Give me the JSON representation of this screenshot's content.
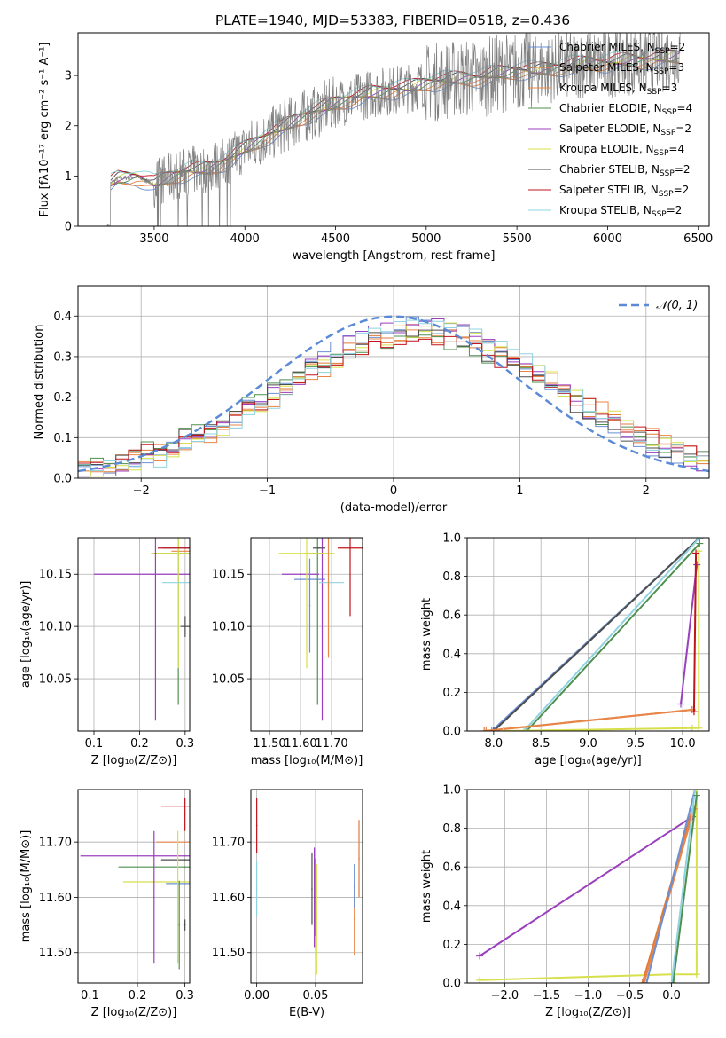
{
  "title": "PLATE=1940, MJD=53383, FIBERID=0518, z=0.436",
  "models": [
    {
      "name": "Chabrier MILES",
      "nssp": "2",
      "color": "#6b8fd4"
    },
    {
      "name": "Salpeter MILES",
      "nssp": "3",
      "color": "#e07b39"
    },
    {
      "name": "Kroupa MILES",
      "nssp": "3",
      "color": "#e8864a"
    },
    {
      "name": "Chabrier ELODIE",
      "nssp": "4",
      "color": "#4f8f4f"
    },
    {
      "name": "Salpeter ELODIE",
      "nssp": "2",
      "color": "#9b3fbf"
    },
    {
      "name": "Kroupa ELODIE",
      "nssp": "4",
      "color": "#d7e04a"
    },
    {
      "name": "Chabrier STELIB",
      "nssp": "2",
      "color": "#4d4d4d"
    },
    {
      "name": "Salpeter STELIB",
      "nssp": "2",
      "color": "#c0141c"
    },
    {
      "name": "Kroupa STELIB",
      "nssp": "2",
      "color": "#8fd3e0"
    }
  ],
  "legend_suffix": "N",
  "legend_sub": "SSP",
  "chart_data": [
    {
      "id": "spectrum",
      "type": "line",
      "xlabel": "wavelength [Angstrom, rest frame]",
      "ylabel": "Flux [fλ10⁻¹⁷ erg cm⁻² s⁻¹ A⁻¹]",
      "xlim": [
        3080,
        6560
      ],
      "ylim": [
        0,
        3.85
      ],
      "xticks": [
        3500,
        4000,
        4500,
        5000,
        5500,
        6000,
        6500
      ],
      "yticks": [
        0,
        1,
        2,
        3
      ],
      "data_color": "#808080",
      "continuum": {
        "x": [
          3260,
          3300,
          3400,
          3500,
          3600,
          3700,
          3800,
          3900,
          4000,
          4100,
          4200,
          4300,
          4400,
          4500,
          4600,
          4700,
          4800,
          4900,
          5000,
          5100,
          5200,
          5300,
          5400,
          5500,
          5600,
          5700,
          5800,
          5900,
          6000,
          6100,
          6200,
          6300,
          6400
        ],
        "y": [
          0.85,
          0.95,
          0.98,
          0.85,
          1.0,
          1.1,
          1.15,
          1.3,
          1.55,
          1.75,
          1.95,
          2.15,
          2.3,
          2.45,
          2.55,
          2.65,
          2.7,
          2.75,
          2.85,
          2.9,
          2.95,
          2.95,
          3.05,
          3.1,
          3.1,
          3.15,
          3.2,
          3.25,
          3.25,
          3.3,
          3.3,
          3.35,
          3.4
        ]
      }
    },
    {
      "id": "residuals",
      "type": "line",
      "xlabel": "(data-model)/error",
      "ylabel": "Normed distribution",
      "xlim": [
        -2.5,
        2.5
      ],
      "ylim": [
        0,
        0.475
      ],
      "xticks": [
        -2,
        -1,
        0,
        1,
        2
      ],
      "yticks": [
        0.0,
        0.1,
        0.2,
        0.3,
        0.4
      ],
      "gaussian_label": "𝒩(0, 1)",
      "gaussian_color": "#5b8bd6"
    },
    {
      "id": "age_vs_Z",
      "type": "scatter",
      "xlabel": "Z [log₁₀(Z/Z⊙)]",
      "ylabel": "age  [log₁₀(age/yr)]",
      "xlim": [
        0.065,
        0.31
      ],
      "ylim": [
        10.0,
        10.185
      ],
      "xticks": [
        0.1,
        0.2,
        0.3
      ],
      "yticks": [
        10.05,
        10.1,
        10.15
      ],
      "points": [
        {
          "m": 0,
          "x": 0.3,
          "y": 10.175,
          "xerr": 0.05,
          "yerr": 0.0
        },
        {
          "m": 1,
          "x": 0.3,
          "y": 10.17,
          "xerr": 0.03,
          "yerr": 0.0
        },
        {
          "m": 2,
          "x": 0.3,
          "y": 10.172,
          "xerr": 0.03,
          "yerr": 0.0
        },
        {
          "m": 3,
          "x": 0.285,
          "y": 10.17,
          "xerr": 0.055,
          "yerr": 0.145
        },
        {
          "m": 4,
          "x": 0.3,
          "y": 10.15,
          "xerr": 0.2,
          "yerr": 0.0
        },
        {
          "m": 5,
          "x": 0.285,
          "y": 10.17,
          "xerr": 0.06,
          "yerr": 0.11
        },
        {
          "m": 6,
          "x": 0.3,
          "y": 10.1,
          "xerr": 0.01,
          "yerr": 0.01
        },
        {
          "m": 7,
          "x": 0.3,
          "y": 10.175,
          "xerr": 0.06,
          "yerr": 0.0
        },
        {
          "m": 8,
          "x": 0.3,
          "y": 10.142,
          "xerr": 0.05,
          "yerr": 0.0
        },
        {
          "m": 4,
          "x": 0.235,
          "y": 10.17,
          "xerr": 0.0,
          "yerr": 0.16
        }
      ]
    },
    {
      "id": "age_vs_mass",
      "type": "scatter",
      "xlabel": "mass [log₁₀(M/M⊙)]",
      "ylabel": "",
      "xlim": [
        11.44,
        11.8
      ],
      "ylim": [
        10.0,
        10.185
      ],
      "xticks": [
        11.5,
        11.6,
        11.7
      ],
      "yticks": [
        10.05,
        10.1,
        10.15
      ],
      "points": [
        {
          "m": 0,
          "x": 11.63,
          "y": 10.145,
          "xerr": 0.05,
          "yerr": 0.0
        },
        {
          "m": 1,
          "x": 11.64,
          "y": 10.17,
          "xerr": 0.03,
          "yerr": 0.0
        },
        {
          "m": 3,
          "x": 11.655,
          "y": 10.17,
          "xerr": 0.02,
          "yerr": 0.145
        },
        {
          "m": 4,
          "x": 11.6,
          "y": 10.15,
          "xerr": 0.06,
          "yerr": 0.0
        },
        {
          "m": 4,
          "x": 11.67,
          "y": 10.17,
          "xerr": 0.0,
          "yerr": 0.16
        },
        {
          "m": 5,
          "x": 11.62,
          "y": 10.17,
          "xerr": 0.09,
          "yerr": 0.11
        },
        {
          "m": 6,
          "x": 11.66,
          "y": 10.175,
          "xerr": 0.02,
          "yerr": 0.0
        },
        {
          "m": 7,
          "x": 11.76,
          "y": 10.175,
          "xerr": 0.04,
          "yerr": 0.065
        },
        {
          "m": 8,
          "x": 11.7,
          "y": 10.142,
          "xerr": 0.04,
          "yerr": 0.0
        },
        {
          "m": 2,
          "x": 11.69,
          "y": 10.14,
          "xerr": 0.0,
          "yerr": 0.07
        },
        {
          "m": 0,
          "x": 11.63,
          "y": 10.12,
          "xerr": 0.0,
          "yerr": 0.045
        }
      ]
    },
    {
      "id": "weight_vs_age",
      "type": "line",
      "xlabel": "age  [log₁₀(age/yr)]",
      "ylabel": "mass weight",
      "xlim": [
        7.72,
        10.28
      ],
      "ylim": [
        0,
        1.0
      ],
      "xticks": [
        8.0,
        8.5,
        9.0,
        9.5,
        10.0
      ],
      "yticks": [
        0.0,
        0.2,
        0.4,
        0.6,
        0.8,
        1.0
      ],
      "series": [
        {
          "m": 0,
          "x": [
            7.98,
            10.18
          ],
          "y": [
            0.0,
            1.0
          ]
        },
        {
          "m": 6,
          "x": [
            8.0,
            10.18
          ],
          "y": [
            0.0,
            1.0
          ]
        },
        {
          "m": 8,
          "x": [
            8.32,
            10.18
          ],
          "y": [
            0.0,
            1.0
          ]
        },
        {
          "m": 3,
          "x": [
            8.35,
            10.18
          ],
          "y": [
            0.0,
            0.97
          ]
        },
        {
          "m": 1,
          "x": [
            7.9,
            10.1
          ],
          "y": [
            0.0,
            0.11
          ]
        },
        {
          "m": 2,
          "x": [
            7.92,
            10.1
          ],
          "y": [
            0.0,
            0.11
          ]
        },
        {
          "m": 5,
          "x": [
            8.1,
            10.1,
            10.17,
            10.17
          ],
          "y": [
            0.0,
            0.015,
            0.015,
            0.93
          ]
        },
        {
          "m": 4,
          "x": [
            9.98,
            10.15
          ],
          "y": [
            0.14,
            0.86
          ]
        },
        {
          "m": 7,
          "x": [
            10.12,
            10.14
          ],
          "y": [
            0.1,
            0.92
          ]
        }
      ]
    },
    {
      "id": "mass_vs_Z",
      "type": "scatter",
      "xlabel": "Z [log₁₀(Z/Z⊙)]",
      "ylabel": "mass [log₁₀(M/M⊙)]",
      "xlim": [
        0.075,
        0.31
      ],
      "ylim": [
        11.445,
        11.795
      ],
      "xticks": [
        0.1,
        0.2,
        0.3
      ],
      "yticks": [
        11.5,
        11.6,
        11.7
      ],
      "points": [
        {
          "m": 4,
          "x": 0.3,
          "y": 11.675,
          "xerr": 0.22,
          "yerr": 0.0
        },
        {
          "m": 6,
          "x": 0.3,
          "y": 11.668,
          "xerr": 0.05,
          "yerr": 0.0
        },
        {
          "m": 3,
          "x": 0.3,
          "y": 11.655,
          "xerr": 0.14,
          "yerr": 0.0
        },
        {
          "m": 5,
          "x": 0.3,
          "y": 11.628,
          "xerr": 0.13,
          "yerr": 0.0
        },
        {
          "m": 0,
          "x": 0.3,
          "y": 11.625,
          "xerr": 0.04,
          "yerr": 0.0
        },
        {
          "m": 7,
          "x": 0.3,
          "y": 11.765,
          "xerr": 0.05,
          "yerr": 0.0
        },
        {
          "m": 7,
          "x": 0.3,
          "y": 11.75,
          "xerr": 0.0,
          "yerr": 0.03
        },
        {
          "m": 2,
          "x": 0.3,
          "y": 11.7,
          "xerr": 0.06,
          "yerr": 0.0
        },
        {
          "m": 4,
          "x": 0.235,
          "y": 11.6,
          "xerr": 0.0,
          "yerr": 0.12
        },
        {
          "m": 5,
          "x": 0.285,
          "y": 11.6,
          "xerr": 0.0,
          "yerr": 0.12
        },
        {
          "m": 3,
          "x": 0.288,
          "y": 11.55,
          "xerr": 0.0,
          "yerr": 0.08
        },
        {
          "m": 6,
          "x": 0.3,
          "y": 11.55,
          "xerr": 0.0,
          "yerr": 0.01
        }
      ]
    },
    {
      "id": "mass_vs_EBV",
      "type": "scatter",
      "xlabel": "E(B-V)",
      "ylabel": "",
      "xlim": [
        -0.005,
        0.09
      ],
      "ylim": [
        11.445,
        11.795
      ],
      "xticks": [
        0.0,
        0.05
      ],
      "yticks": [
        11.5,
        11.6,
        11.7
      ],
      "points": [
        {
          "m": 7,
          "x": 0.0,
          "y": 11.73,
          "yerr": 0.05
        },
        {
          "m": 8,
          "x": 0.0,
          "y": 11.615,
          "yerr": 0.05
        },
        {
          "m": 6,
          "x": 0.047,
          "y": 11.615,
          "yerr": 0.065
        },
        {
          "m": 4,
          "x": 0.049,
          "y": 11.6,
          "yerr": 0.09
        },
        {
          "m": 5,
          "x": 0.051,
          "y": 11.56,
          "yerr": 0.1
        },
        {
          "m": 3,
          "x": 0.05,
          "y": 11.6,
          "yerr": 0.07
        },
        {
          "m": 2,
          "x": 0.083,
          "y": 11.56,
          "yerr": 0.065
        },
        {
          "m": 0,
          "x": 0.083,
          "y": 11.62,
          "yerr": 0.04
        },
        {
          "m": 1,
          "x": 0.087,
          "y": 11.67,
          "yerr": 0.07
        }
      ]
    },
    {
      "id": "weight_vs_Z",
      "type": "line",
      "xlabel": "Z [log₁₀(Z/Z⊙)]",
      "ylabel": "mass weight",
      "xlim": [
        -2.45,
        0.45
      ],
      "ylim": [
        0,
        1.0
      ],
      "xticks": [
        -2.0,
        -1.5,
        -1.0,
        -0.5,
        0.0
      ],
      "yticks": [
        0.0,
        0.2,
        0.4,
        0.6,
        0.8,
        1.0
      ],
      "series": [
        {
          "m": 4,
          "x": [
            -2.3,
            0.25
          ],
          "y": [
            0.14,
            0.86
          ]
        },
        {
          "m": 5,
          "x": [
            -2.3,
            0.0,
            0.3,
            0.3
          ],
          "y": [
            0.015,
            0.045,
            0.045,
            1.0
          ]
        },
        {
          "m": 1,
          "x": [
            -0.35,
            0.25
          ],
          "y": [
            0.0,
            0.9
          ]
        },
        {
          "m": 2,
          "x": [
            -0.33,
            0.27
          ],
          "y": [
            0.0,
            0.9
          ]
        },
        {
          "m": 0,
          "x": [
            -0.3,
            0.28
          ],
          "y": [
            0.0,
            1.0
          ]
        },
        {
          "m": 8,
          "x": [
            0.0,
            0.28
          ],
          "y": [
            0.0,
            1.0
          ]
        },
        {
          "m": 3,
          "x": [
            0.02,
            0.3
          ],
          "y": [
            0.0,
            0.97
          ]
        }
      ]
    }
  ]
}
